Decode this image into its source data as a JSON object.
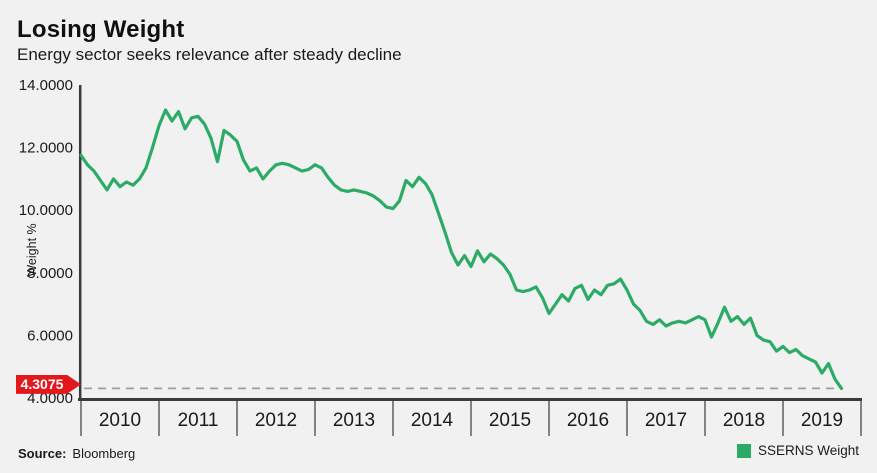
{
  "header": {
    "title": "Losing Weight",
    "subtitle": "Energy sector seeks relevance after steady decline"
  },
  "chart_data": {
    "type": "line",
    "title": "Losing Weight",
    "subtitle": "Energy sector seeks relevance after steady decline",
    "ylabel": "Weight %",
    "xlabel": "",
    "ylim": [
      4,
      14
    ],
    "xlim": [
      2010,
      2020
    ],
    "grid": false,
    "legend_position": "bottom-right",
    "y_ticks": [
      4,
      6,
      8,
      10,
      12,
      14
    ],
    "y_tick_labels": [
      "4.0000",
      "6.0000",
      "8.0000",
      "10.0000",
      "12.0000",
      "14.0000"
    ],
    "x_labels": [
      "2010",
      "2011",
      "2012",
      "2013",
      "2014",
      "2015",
      "2016",
      "2017",
      "2018",
      "2019"
    ],
    "last_value": 4.3075,
    "last_value_label": "4.3075",
    "series": [
      {
        "name": "SSERNS Weight",
        "color": "#2bab66",
        "x_start": 2010.0,
        "x_step": 0.0833333,
        "values": [
          11.75,
          11.45,
          11.25,
          10.95,
          10.65,
          11.0,
          10.75,
          10.9,
          10.8,
          11.0,
          11.35,
          12.0,
          12.7,
          13.2,
          12.85,
          13.15,
          12.6,
          12.95,
          13.0,
          12.75,
          12.3,
          11.55,
          12.55,
          12.4,
          12.2,
          11.6,
          11.25,
          11.35,
          11.0,
          11.25,
          11.45,
          11.5,
          11.45,
          11.35,
          11.25,
          11.3,
          11.45,
          11.35,
          11.05,
          10.8,
          10.65,
          10.6,
          10.65,
          10.6,
          10.55,
          10.45,
          10.3,
          10.1,
          10.05,
          10.3,
          10.95,
          10.75,
          11.05,
          10.85,
          10.5,
          9.9,
          9.3,
          8.65,
          8.25,
          8.55,
          8.2,
          8.7,
          8.35,
          8.6,
          8.45,
          8.25,
          7.95,
          7.45,
          7.4,
          7.45,
          7.55,
          7.2,
          6.7,
          7.0,
          7.3,
          7.1,
          7.5,
          7.6,
          7.15,
          7.45,
          7.3,
          7.6,
          7.65,
          7.8,
          7.45,
          7.0,
          6.8,
          6.45,
          6.35,
          6.5,
          6.3,
          6.4,
          6.45,
          6.4,
          6.5,
          6.6,
          6.5,
          5.95,
          6.4,
          6.9,
          6.45,
          6.6,
          6.35,
          6.55,
          6.0,
          5.85,
          5.8,
          5.5,
          5.65,
          5.45,
          5.55,
          5.35,
          5.25,
          5.15,
          4.8,
          5.1,
          4.6,
          4.3075
        ]
      }
    ]
  },
  "marker": {
    "label": "4.3075",
    "color": "#e2181d"
  },
  "legend": {
    "label": "SSERNS Weight",
    "swatch_color": "#2bab66"
  },
  "source": {
    "label": "Source:",
    "value": "Bloomberg"
  },
  "colors": {
    "background": "#f1f1f1",
    "line": "#2bab66",
    "axis": "#3b3b3b",
    "tick": "#606060",
    "dashed": "#9e9e9e",
    "text": "#1b1b1b",
    "badge": "#e2181d"
  }
}
